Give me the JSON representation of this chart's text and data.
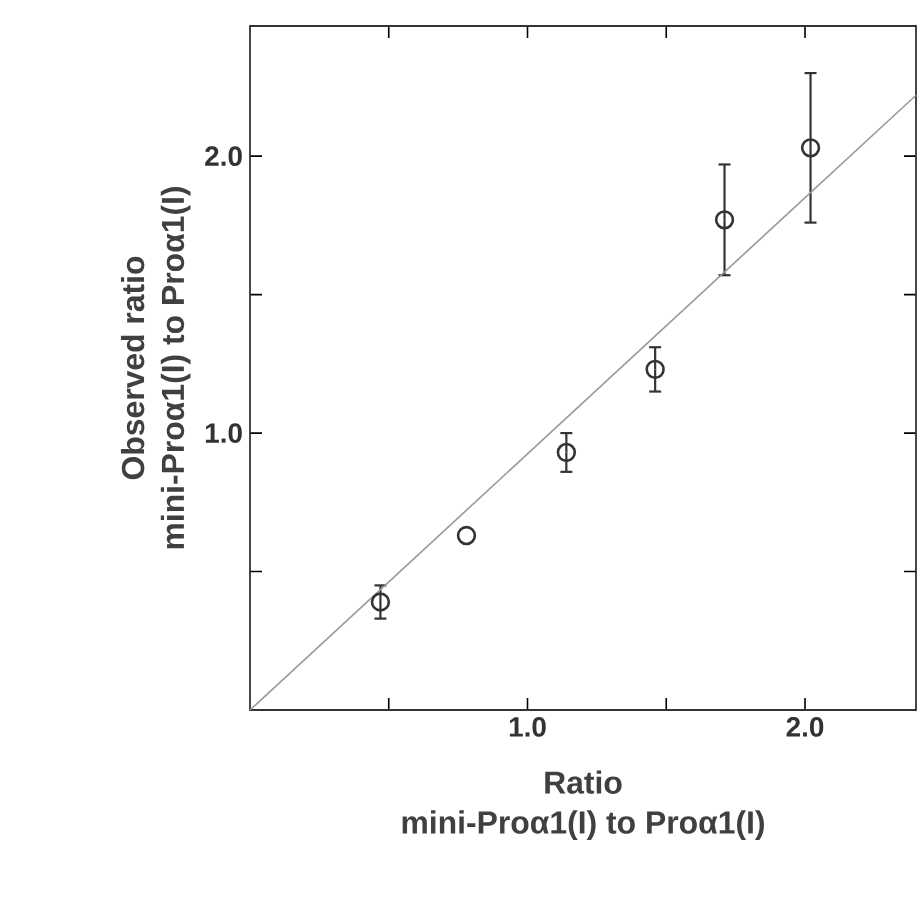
{
  "chart_data": {
    "type": "scatter",
    "xlabel": "Ratio\nmini-Proα1(I) to Proα1(I)",
    "ylabel": "Observed ratio\nmini-Proα1(I) to Proα1(I)",
    "xlim": [
      0,
      2.4
    ],
    "ylim": [
      0,
      2.47
    ],
    "grid": false,
    "xticks": [
      {
        "value": 0.5,
        "label": null
      },
      {
        "value": 1,
        "label": "1.0"
      },
      {
        "value": 1.5,
        "label": null
      },
      {
        "value": 2,
        "label": "2.0"
      }
    ],
    "yticks": [
      {
        "value": 0.5,
        "label": null
      },
      {
        "value": 1,
        "label": "1.0"
      },
      {
        "value": 1.5,
        "label": null
      },
      {
        "value": 2,
        "label": "2.0"
      }
    ],
    "series": [
      {
        "color": "#333333",
        "marker": "circle",
        "x": [
          0.47,
          0.78,
          1.14,
          1.46,
          1.71,
          2.02
        ],
        "values": [
          0.39,
          0.63,
          0.93,
          1.23,
          1.77,
          2.03
        ],
        "errors": [
          0.06,
          null,
          0.07,
          0.08,
          0.2,
          0.27
        ]
      },
      {
        "type": "line",
        "color": "#999999",
        "marker": "none",
        "x": [
          0,
          2.4
        ],
        "values": [
          0,
          2.22
        ]
      }
    ]
  }
}
